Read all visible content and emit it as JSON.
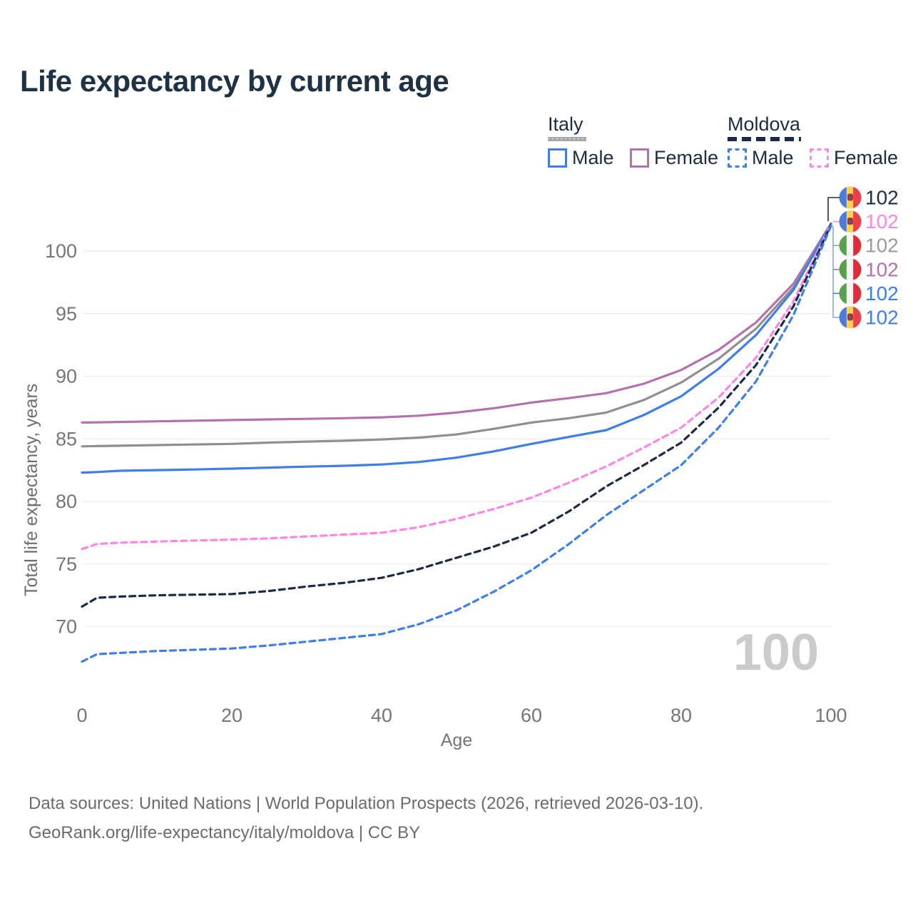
{
  "title": "Life expectancy by current age",
  "legend": {
    "groups": [
      {
        "country": "Italy",
        "line_style": "solid",
        "underline_color": "#a8a8a8",
        "items": [
          {
            "label": "Male",
            "color": "#3f7de8"
          },
          {
            "label": "Female",
            "color": "#b472ac"
          }
        ]
      },
      {
        "country": "Moldova",
        "line_style": "dashed",
        "underline_color": "#1b2b47",
        "items": [
          {
            "label": "Male",
            "color": "#3f7de8"
          },
          {
            "label": "Female",
            "color": "#ff85e2"
          }
        ]
      }
    ]
  },
  "watermark_age": "100",
  "footer": {
    "line1": "Data sources: United Nations | World Population Prospects (2026, retrieved 2026-03-10).",
    "line2": "GeoRank.org/life-expectancy/italy/moldova | CC BY"
  },
  "chart_data": {
    "type": "line",
    "title": "Life expectancy by current age",
    "xlabel": "Age",
    "ylabel": "Total life expectancy, years",
    "xlim": [
      0,
      100
    ],
    "ylim": [
      66,
      103
    ],
    "xticks": [
      0,
      20,
      40,
      60,
      80,
      100
    ],
    "yticks": [
      70,
      75,
      80,
      85,
      90,
      95,
      100
    ],
    "grid": "horizontal-only",
    "legend_position": "top-right",
    "ages": [
      0,
      2,
      5,
      10,
      15,
      20,
      25,
      30,
      35,
      40,
      45,
      50,
      55,
      60,
      65,
      70,
      75,
      80,
      85,
      90,
      95,
      100
    ],
    "series": [
      {
        "name": "Italy Female",
        "country": "Italy",
        "sex": "Female",
        "color": "#b472ac",
        "dash": "solid",
        "values": [
          86.3,
          86.32,
          86.35,
          86.4,
          86.45,
          86.5,
          86.55,
          86.6,
          86.65,
          86.72,
          86.85,
          87.1,
          87.45,
          87.9,
          88.25,
          88.65,
          89.4,
          90.5,
          92.1,
          94.3,
          97.4,
          102.2
        ]
      },
      {
        "name": "Italy Both sexes",
        "country": "Italy",
        "sex": "Both",
        "color": "#8f8f8f",
        "dash": "solid",
        "values": [
          84.4,
          84.42,
          84.45,
          84.5,
          84.55,
          84.6,
          84.7,
          84.78,
          84.85,
          84.95,
          85.1,
          85.35,
          85.8,
          86.3,
          86.65,
          87.1,
          88.1,
          89.5,
          91.4,
          93.8,
          97.1,
          102.2
        ]
      },
      {
        "name": "Italy Male",
        "country": "Italy",
        "sex": "Male",
        "color": "#3f7de8",
        "dash": "solid",
        "values": [
          82.3,
          82.35,
          82.45,
          82.5,
          82.55,
          82.62,
          82.7,
          82.78,
          82.85,
          82.95,
          83.15,
          83.5,
          84.0,
          84.6,
          85.15,
          85.7,
          86.9,
          88.4,
          90.6,
          93.3,
          96.9,
          102.2
        ]
      },
      {
        "name": "Moldova Female",
        "country": "Moldova",
        "sex": "Female",
        "color": "#ff85e2",
        "dash": "dashed",
        "values": [
          76.2,
          76.6,
          76.7,
          76.8,
          76.88,
          76.95,
          77.05,
          77.2,
          77.35,
          77.5,
          77.95,
          78.6,
          79.4,
          80.3,
          81.5,
          82.8,
          84.3,
          85.9,
          88.3,
          91.5,
          96.0,
          102.2
        ]
      },
      {
        "name": "Moldova Both sexes",
        "country": "Moldova",
        "sex": "Both",
        "color": "#1b2b47",
        "dash": "dashed",
        "values": [
          71.6,
          72.3,
          72.4,
          72.5,
          72.55,
          72.6,
          72.85,
          73.2,
          73.5,
          73.9,
          74.6,
          75.5,
          76.4,
          77.5,
          79.2,
          81.2,
          82.9,
          84.7,
          87.5,
          90.9,
          95.6,
          102.1
        ]
      },
      {
        "name": "Moldova Male",
        "country": "Moldova",
        "sex": "Male",
        "color": "#3f7de8",
        "dash": "dashed",
        "values": [
          67.2,
          67.8,
          67.9,
          68.05,
          68.15,
          68.25,
          68.5,
          68.8,
          69.1,
          69.4,
          70.2,
          71.3,
          72.8,
          74.5,
          76.6,
          78.9,
          80.9,
          82.9,
          85.9,
          89.6,
          94.9,
          102.0
        ]
      }
    ],
    "end_labels": [
      {
        "text": "102",
        "series": "Moldova Both sexes",
        "flag": "moldova",
        "color": "#1d2e4a"
      },
      {
        "text": "102",
        "series": "Moldova Female",
        "flag": "moldova",
        "color": "#ff85e2"
      },
      {
        "text": "102",
        "series": "Italy Both sexes",
        "flag": "italy",
        "color": "#9b9b9b"
      },
      {
        "text": "102",
        "series": "Italy Female",
        "flag": "italy",
        "color": "#b472ac"
      },
      {
        "text": "102",
        "series": "Italy Male",
        "flag": "italy",
        "color": "#3f7de8"
      },
      {
        "text": "102",
        "series": "Moldova Male",
        "flag": "moldova",
        "color": "#3f7de8"
      }
    ],
    "flag_colors": {
      "moldova": [
        "#4a7cd9",
        "#ffd34e",
        "#e8414b"
      ],
      "italy": [
        "#57a14e",
        "#f4f4f4",
        "#da2f38"
      ]
    }
  }
}
